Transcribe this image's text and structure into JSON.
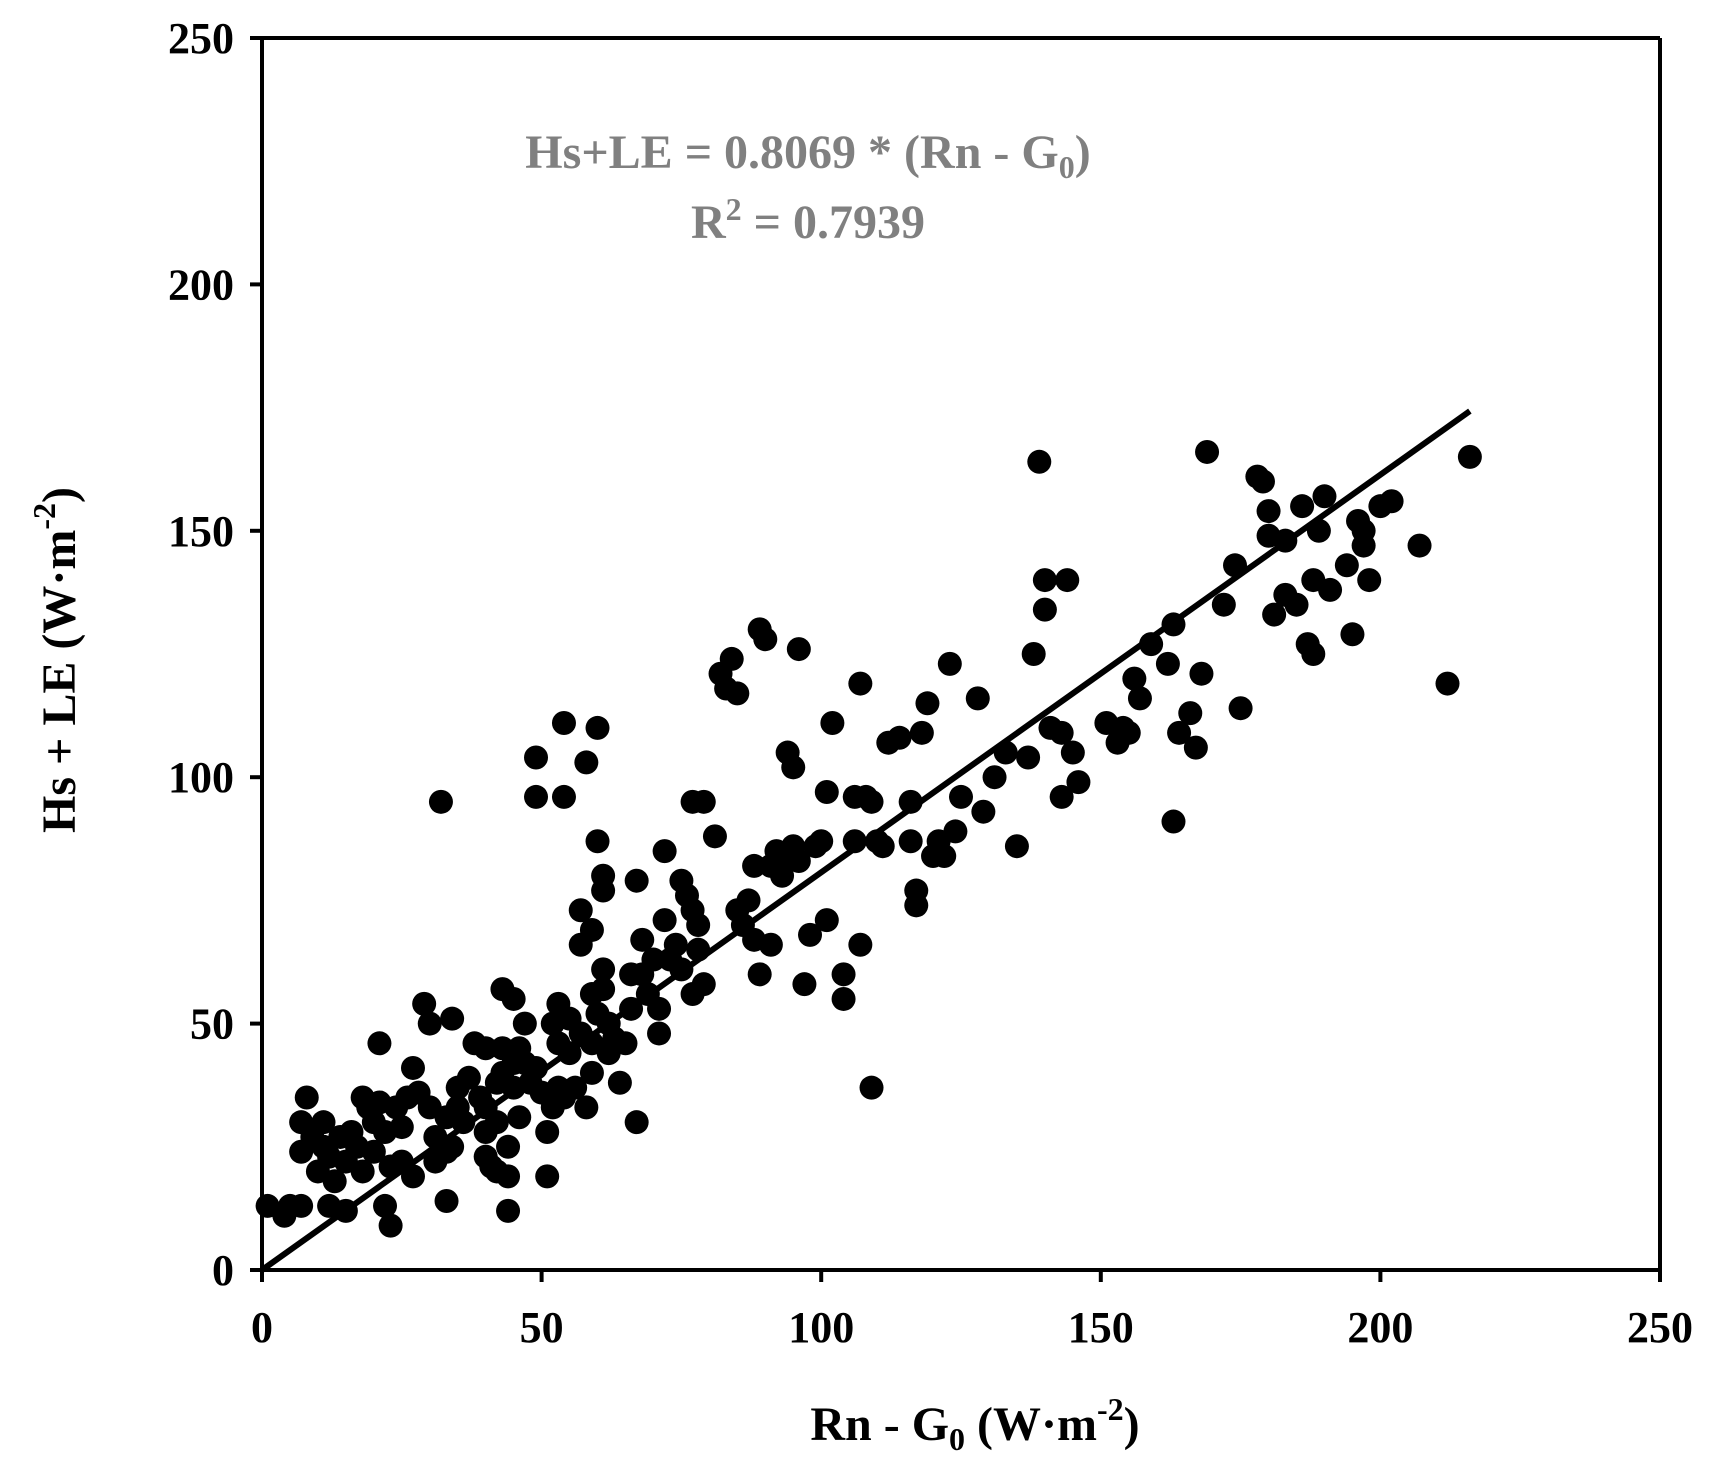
{
  "colors": {
    "axis": "#000000",
    "points": "#000000",
    "fit_line": "#000000",
    "equation": "#808080",
    "background": "#ffffff"
  },
  "equation": {
    "line1_text": "Hs+LE = 0.8069 * (Rn - G",
    "line1_sub": "0",
    "line1_end": ")",
    "line2_r": "R",
    "line2_sup": "2",
    "line2_rest": " = 0.7939"
  },
  "chart_data": {
    "type": "scatter",
    "title": "",
    "xlabel": {
      "main": "Rn - G",
      "sub": "0",
      "unit_pre": " (W·m",
      "sup": "-2",
      "unit_post": ")"
    },
    "ylabel": {
      "main": "Hs + LE (W·m",
      "sup": "-2",
      "unit_post": ")"
    },
    "xlim": [
      0,
      250
    ],
    "ylim": [
      0,
      250
    ],
    "x_ticks": [
      0,
      50,
      100,
      150,
      200,
      250
    ],
    "y_ticks": [
      0,
      50,
      100,
      150,
      200,
      250
    ],
    "x_tick_labels": [
      "0",
      "50",
      "100",
      "150",
      "200",
      "250"
    ],
    "y_tick_labels": [
      "0",
      "50",
      "100",
      "150",
      "200",
      "250"
    ],
    "grid": false,
    "legend": "none",
    "fit": {
      "slope": 0.8069,
      "intercept": 0,
      "x_range": [
        0,
        216
      ],
      "r2": 0.7939
    },
    "points": [
      [
        1,
        13
      ],
      [
        4,
        11
      ],
      [
        5,
        13
      ],
      [
        7,
        13
      ],
      [
        7,
        30
      ],
      [
        7,
        24
      ],
      [
        8,
        35
      ],
      [
        9,
        27
      ],
      [
        10,
        20
      ],
      [
        11,
        30
      ],
      [
        11,
        25
      ],
      [
        12,
        23
      ],
      [
        12,
        13
      ],
      [
        13,
        18
      ],
      [
        14,
        27
      ],
      [
        15,
        22
      ],
      [
        15,
        12
      ],
      [
        16,
        28
      ],
      [
        17,
        25
      ],
      [
        18,
        20
      ],
      [
        18,
        35
      ],
      [
        19,
        33
      ],
      [
        20,
        24
      ],
      [
        20,
        30
      ],
      [
        21,
        34
      ],
      [
        21,
        46
      ],
      [
        22,
        13
      ],
      [
        22,
        28
      ],
      [
        23,
        9
      ],
      [
        23,
        21
      ],
      [
        24,
        33
      ],
      [
        25,
        22
      ],
      [
        25,
        29
      ],
      [
        26,
        35
      ],
      [
        27,
        41
      ],
      [
        27,
        19
      ],
      [
        28,
        36
      ],
      [
        29,
        54
      ],
      [
        30,
        50
      ],
      [
        30,
        33
      ],
      [
        31,
        27
      ],
      [
        31,
        22
      ],
      [
        32,
        95
      ],
      [
        33,
        14
      ],
      [
        33,
        24
      ],
      [
        33,
        31
      ],
      [
        34,
        51
      ],
      [
        34,
        25
      ],
      [
        35,
        37
      ],
      [
        35,
        33
      ],
      [
        36,
        30
      ],
      [
        37,
        39
      ],
      [
        38,
        46
      ],
      [
        39,
        35
      ],
      [
        40,
        45
      ],
      [
        40,
        33
      ],
      [
        40,
        28
      ],
      [
        40,
        23
      ],
      [
        41,
        21
      ],
      [
        42,
        38
      ],
      [
        42,
        30
      ],
      [
        42,
        20
      ],
      [
        43,
        57
      ],
      [
        43,
        40
      ],
      [
        43,
        45
      ],
      [
        44,
        19
      ],
      [
        44,
        12
      ],
      [
        44,
        25
      ],
      [
        45,
        55
      ],
      [
        45,
        37
      ],
      [
        45,
        42
      ],
      [
        46,
        45
      ],
      [
        46,
        31
      ],
      [
        47,
        50
      ],
      [
        47,
        42
      ],
      [
        48,
        38
      ],
      [
        49,
        41
      ],
      [
        49,
        104
      ],
      [
        49,
        96
      ],
      [
        50,
        36
      ],
      [
        51,
        28
      ],
      [
        51,
        19
      ],
      [
        52,
        50
      ],
      [
        52,
        33
      ],
      [
        53,
        54
      ],
      [
        53,
        46
      ],
      [
        53,
        37
      ],
      [
        54,
        35
      ],
      [
        54,
        96
      ],
      [
        54,
        111
      ],
      [
        55,
        51
      ],
      [
        55,
        44
      ],
      [
        56,
        37
      ],
      [
        57,
        73
      ],
      [
        57,
        66
      ],
      [
        57,
        48
      ],
      [
        58,
        33
      ],
      [
        58,
        103
      ],
      [
        59,
        69
      ],
      [
        59,
        56
      ],
      [
        59,
        46
      ],
      [
        59,
        40
      ],
      [
        60,
        110
      ],
      [
        60,
        87
      ],
      [
        60,
        52
      ],
      [
        61,
        80
      ],
      [
        61,
        77
      ],
      [
        61,
        61
      ],
      [
        61,
        57
      ],
      [
        62,
        50
      ],
      [
        62,
        44
      ],
      [
        63,
        47
      ],
      [
        64,
        38
      ],
      [
        65,
        46
      ],
      [
        66,
        60
      ],
      [
        66,
        53
      ],
      [
        67,
        30
      ],
      [
        67,
        79
      ],
      [
        68,
        60
      ],
      [
        68,
        67
      ],
      [
        69,
        56
      ],
      [
        70,
        63
      ],
      [
        71,
        53
      ],
      [
        71,
        48
      ],
      [
        72,
        71
      ],
      [
        72,
        85
      ],
      [
        73,
        63
      ],
      [
        74,
        66
      ],
      [
        75,
        61
      ],
      [
        75,
        79
      ],
      [
        76,
        76
      ],
      [
        77,
        73
      ],
      [
        77,
        95
      ],
      [
        77,
        56
      ],
      [
        78,
        65
      ],
      [
        78,
        70
      ],
      [
        79,
        95
      ],
      [
        79,
        58
      ],
      [
        81,
        88
      ],
      [
        82,
        121
      ],
      [
        83,
        118
      ],
      [
        84,
        124
      ],
      [
        85,
        73
      ],
      [
        85,
        117
      ],
      [
        86,
        70
      ],
      [
        87,
        75
      ],
      [
        88,
        82
      ],
      [
        88,
        67
      ],
      [
        89,
        60
      ],
      [
        89,
        130
      ],
      [
        90,
        128
      ],
      [
        91,
        66
      ],
      [
        91,
        82
      ],
      [
        92,
        85
      ],
      [
        93,
        84
      ],
      [
        93,
        80
      ],
      [
        94,
        105
      ],
      [
        95,
        102
      ],
      [
        95,
        86
      ],
      [
        96,
        83
      ],
      [
        96,
        126
      ],
      [
        97,
        58
      ],
      [
        98,
        68
      ],
      [
        99,
        86
      ],
      [
        100,
        87
      ],
      [
        101,
        71
      ],
      [
        101,
        97
      ],
      [
        102,
        111
      ],
      [
        104,
        60
      ],
      [
        104,
        55
      ],
      [
        106,
        87
      ],
      [
        106,
        96
      ],
      [
        107,
        119
      ],
      [
        107,
        66
      ],
      [
        108,
        96
      ],
      [
        109,
        37
      ],
      [
        109,
        95
      ],
      [
        110,
        87
      ],
      [
        111,
        86
      ],
      [
        112,
        107
      ],
      [
        114,
        108
      ],
      [
        116,
        95
      ],
      [
        116,
        87
      ],
      [
        117,
        74
      ],
      [
        117,
        77
      ],
      [
        118,
        109
      ],
      [
        119,
        115
      ],
      [
        120,
        84
      ],
      [
        121,
        87
      ],
      [
        122,
        84
      ],
      [
        123,
        123
      ],
      [
        124,
        89
      ],
      [
        125,
        96
      ],
      [
        128,
        116
      ],
      [
        129,
        93
      ],
      [
        131,
        100
      ],
      [
        133,
        105
      ],
      [
        135,
        86
      ],
      [
        137,
        104
      ],
      [
        138,
        125
      ],
      [
        139,
        164
      ],
      [
        140,
        140
      ],
      [
        140,
        134
      ],
      [
        141,
        110
      ],
      [
        143,
        109
      ],
      [
        143,
        96
      ],
      [
        144,
        140
      ],
      [
        145,
        105
      ],
      [
        146,
        99
      ],
      [
        151,
        111
      ],
      [
        153,
        107
      ],
      [
        154,
        110
      ],
      [
        155,
        109
      ],
      [
        156,
        120
      ],
      [
        157,
        116
      ],
      [
        159,
        127
      ],
      [
        162,
        123
      ],
      [
        163,
        131
      ],
      [
        163,
        91
      ],
      [
        164,
        109
      ],
      [
        166,
        113
      ],
      [
        167,
        106
      ],
      [
        168,
        121
      ],
      [
        169,
        166
      ],
      [
        172,
        135
      ],
      [
        174,
        143
      ],
      [
        175,
        114
      ],
      [
        178,
        161
      ],
      [
        179,
        160
      ],
      [
        180,
        149
      ],
      [
        180,
        154
      ],
      [
        181,
        133
      ],
      [
        183,
        137
      ],
      [
        183,
        148
      ],
      [
        185,
        135
      ],
      [
        186,
        155
      ],
      [
        187,
        127
      ],
      [
        188,
        140
      ],
      [
        188,
        125
      ],
      [
        189,
        150
      ],
      [
        190,
        157
      ],
      [
        191,
        138
      ],
      [
        194,
        143
      ],
      [
        195,
        129
      ],
      [
        196,
        152
      ],
      [
        197,
        147
      ],
      [
        197,
        150
      ],
      [
        198,
        140
      ],
      [
        200,
        155
      ],
      [
        202,
        156
      ],
      [
        207,
        147
      ],
      [
        212,
        119
      ],
      [
        216,
        165
      ]
    ]
  }
}
